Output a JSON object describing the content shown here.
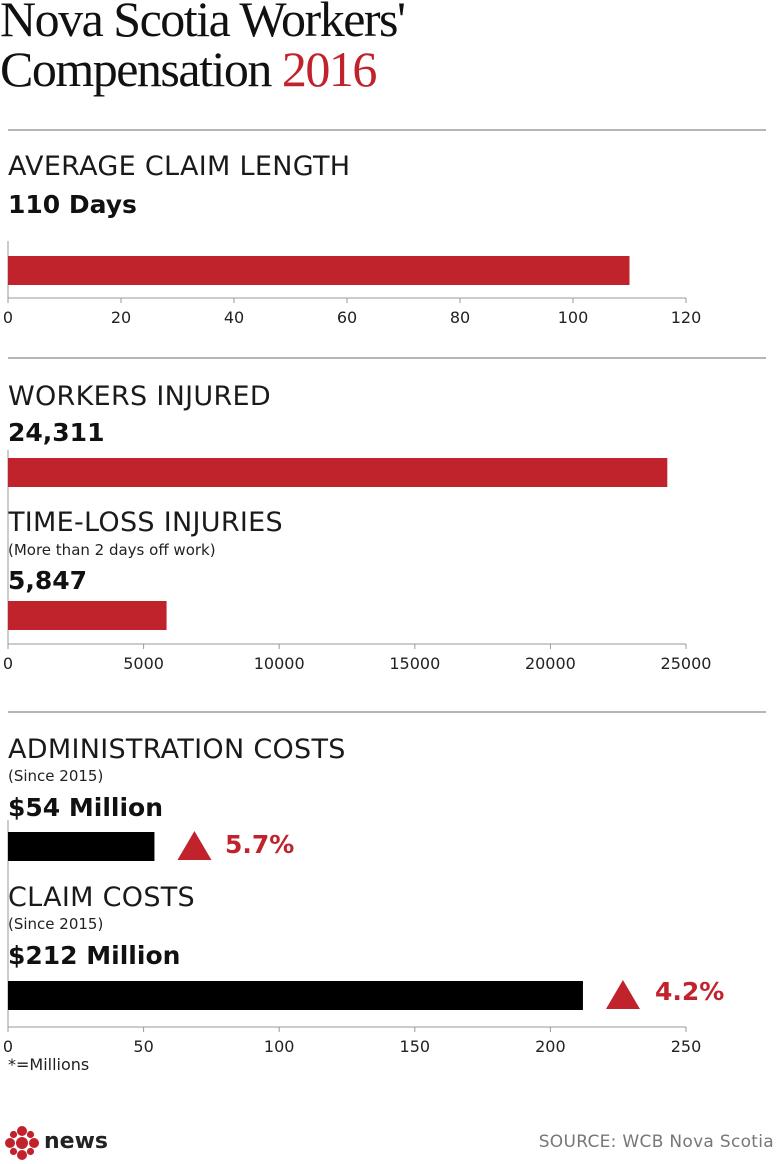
{
  "header": {
    "title_line1": "Nova Scotia Workers'",
    "title_line2": "Compensation",
    "year": "2016"
  },
  "colors": {
    "accent": "#c0232c",
    "black_bar": "#000000",
    "axis": "#999999",
    "divider": "#b5b5b5"
  },
  "chart_data": [
    {
      "type": "bar",
      "title": "AVERAGE CLAIM LENGTH",
      "value_label": "110 Days",
      "categories": [
        "Average claim length"
      ],
      "values": [
        110
      ],
      "xlim": [
        0,
        120
      ],
      "ticks": [
        0,
        20,
        40,
        60,
        80,
        100,
        120
      ],
      "tick_labels": [
        "0",
        "20",
        "40",
        "60",
        "80",
        "100",
        "120"
      ],
      "color": "#c0232c"
    },
    {
      "type": "bar",
      "series": [
        {
          "title": "WORKERS INJURED",
          "subtitle": "",
          "value_label": "24,311",
          "value": 24311,
          "color": "#c0232c"
        },
        {
          "title": "TIME-LOSS INJURIES",
          "subtitle": "(More than 2 days off work)",
          "value_label": "5,847",
          "value": 5847,
          "color": "#c0232c"
        }
      ],
      "xlim": [
        0,
        25000
      ],
      "ticks": [
        0,
        5000,
        10000,
        15000,
        20000,
        25000
      ],
      "tick_labels": [
        "0",
        "5000",
        "10000",
        "15000",
        "20000",
        "25000"
      ]
    },
    {
      "type": "bar",
      "series": [
        {
          "title": "ADMINISTRATION COSTS",
          "subtitle": "(Since 2015)",
          "value_label": "$54 Million",
          "value": 54,
          "change": "5.7%",
          "direction": "up",
          "color": "#000000"
        },
        {
          "title": "CLAIM COSTS",
          "subtitle": "(Since 2015)",
          "value_label": "$212 Million",
          "value": 212,
          "change": "4.2%",
          "direction": "up",
          "color": "#000000"
        }
      ],
      "xlim": [
        0,
        250
      ],
      "ticks": [
        0,
        50,
        100,
        150,
        200,
        250
      ],
      "tick_labels": [
        "0",
        "50",
        "100",
        "150",
        "200",
        "250"
      ],
      "footnote": "*=Millions"
    }
  ],
  "footer": {
    "logo_text": "news",
    "source": "SOURCE: WCB Nova Scotia"
  }
}
